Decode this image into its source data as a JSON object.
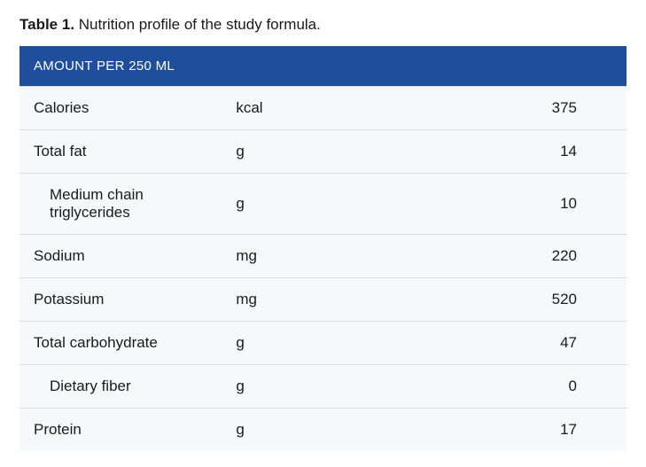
{
  "caption": {
    "label": "Table 1.",
    "text": "Nutrition profile of the study formula."
  },
  "table": {
    "header": "AMOUNT PER 250 ML",
    "header_bg": "#1f4e9c",
    "header_color": "#ffffff",
    "row_border_color": "#d8dde2",
    "body_bg": "#f6f8fa",
    "text_color": "#1a1a1a",
    "rows": [
      {
        "name": "Calories",
        "unit": "kcal",
        "value": "375",
        "indent": false
      },
      {
        "name": "Total fat",
        "unit": "g",
        "value": "14",
        "indent": false
      },
      {
        "name": "Medium chain triglycerides",
        "unit": "g",
        "value": "10",
        "indent": true
      },
      {
        "name": "Sodium",
        "unit": "mg",
        "value": "220",
        "indent": false
      },
      {
        "name": "Potassium",
        "unit": "mg",
        "value": "520",
        "indent": false
      },
      {
        "name": "Total carbohydrate",
        "unit": "g",
        "value": "47",
        "indent": false
      },
      {
        "name": "Dietary fiber",
        "unit": "g",
        "value": "0",
        "indent": true
      },
      {
        "name": "Protein",
        "unit": "g",
        "value": "17",
        "indent": false
      }
    ]
  }
}
